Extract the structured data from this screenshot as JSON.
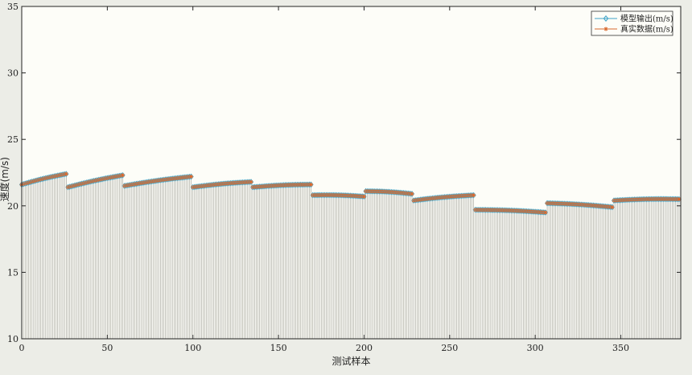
{
  "chart_data": {
    "type": "line",
    "xlabel": "测试样本",
    "ylabel": "速度(m/s)",
    "xlim": [
      0,
      385
    ],
    "ylim": [
      10,
      35
    ],
    "xticks": [
      0,
      50,
      100,
      150,
      200,
      250,
      300,
      350
    ],
    "yticks": [
      10,
      15,
      20,
      25,
      30,
      35
    ],
    "grid": false,
    "legend_position": "top-right",
    "segments": [
      {
        "x": [
          0,
          26
        ],
        "y": [
          21.6,
          22.4
        ]
      },
      {
        "x": [
          27,
          59
        ],
        "y": [
          21.4,
          22.3
        ]
      },
      {
        "x": [
          60,
          99
        ],
        "y": [
          21.5,
          22.2
        ]
      },
      {
        "x": [
          100,
          134
        ],
        "y": [
          21.4,
          21.8
        ]
      },
      {
        "x": [
          135,
          169
        ],
        "y": [
          21.4,
          21.6
        ]
      },
      {
        "x": [
          170,
          200
        ],
        "y": [
          20.8,
          20.7
        ]
      },
      {
        "x": [
          201,
          228
        ],
        "y": [
          21.1,
          20.9
        ]
      },
      {
        "x": [
          229,
          264
        ],
        "y": [
          20.4,
          20.8
        ]
      },
      {
        "x": [
          265,
          306
        ],
        "y": [
          19.7,
          19.5
        ]
      },
      {
        "x": [
          307,
          345
        ],
        "y": [
          20.2,
          19.9
        ]
      },
      {
        "x": [
          346,
          384
        ],
        "y": [
          20.4,
          20.5
        ]
      }
    ],
    "series": [
      {
        "name": "模型输出(m/s)",
        "color": "#3ea3c8",
        "marker": "diamond"
      },
      {
        "name": "真实数据(m/s)",
        "color": "#d9692e",
        "marker": "star"
      }
    ],
    "stem_color": "#9a9a92"
  }
}
